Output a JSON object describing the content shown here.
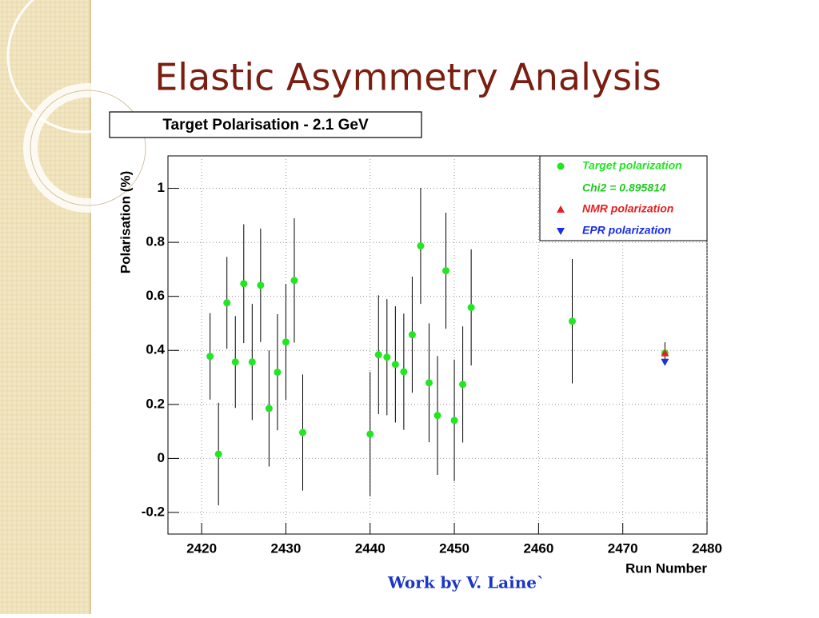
{
  "slide_title": "Elastic Asymmetry Analysis",
  "footer": "Work by V. Laine`",
  "chart_data": {
    "type": "scatter",
    "title": "Target Polarisation - 2.1 GeV",
    "x_label": "Run Number",
    "y_label": "Polarisation (%)",
    "xlim": [
      2416,
      2480
    ],
    "ylim": [
      -0.28,
      1.12
    ],
    "xticks": [
      2420,
      2430,
      2440,
      2450,
      2460,
      2470,
      2480
    ],
    "yticks": [
      -0.2,
      0,
      0.2,
      0.4,
      0.6,
      0.8,
      1
    ],
    "grid": true,
    "legend_position": "upper right",
    "legend_note": "Chi2 = 0.895814",
    "series": [
      {
        "name": "Target polarization",
        "color": "#22e622",
        "marker": "circle",
        "x": [
          2421,
          2422,
          2423,
          2424,
          2425,
          2426,
          2427,
          2428,
          2429,
          2430,
          2431,
          2432,
          2440,
          2441,
          2442,
          2443,
          2444,
          2445,
          2446,
          2447,
          2448,
          2449,
          2450,
          2451,
          2452,
          2464,
          2475
        ],
        "values": [
          0.378,
          0.016,
          0.576,
          0.357,
          0.647,
          0.357,
          0.641,
          0.185,
          0.319,
          0.431,
          0.659,
          0.096,
          0.09,
          0.384,
          0.375,
          0.348,
          0.321,
          0.458,
          0.787,
          0.28,
          0.159,
          0.695,
          0.141,
          0.274,
          0.559,
          0.508,
          0.39
        ],
        "errors": [
          0.16,
          0.19,
          0.17,
          0.17,
          0.22,
          0.215,
          0.21,
          0.215,
          0.215,
          0.215,
          0.23,
          0.215,
          0.23,
          0.22,
          0.215,
          0.215,
          0.215,
          0.215,
          0.215,
          0.22,
          0.22,
          0.215,
          0.225,
          0.215,
          0.215,
          0.23,
          0.04
        ]
      },
      {
        "name": "NMR polarization",
        "color": "#e62020",
        "marker": "triangle-up",
        "x": [
          2475
        ],
        "values": [
          0.39
        ]
      },
      {
        "name": "EPR polarization",
        "color": "#1a2ee6",
        "marker": "triangle-down",
        "x": [
          2475
        ],
        "values": [
          0.357
        ]
      }
    ]
  }
}
